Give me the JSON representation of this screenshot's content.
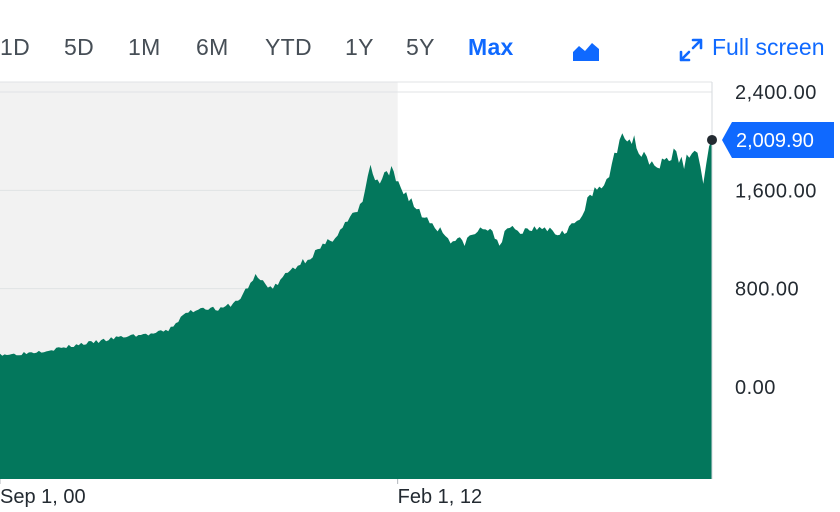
{
  "toolbar": {
    "ranges": [
      "1D",
      "5D",
      "1M",
      "6M",
      "YTD",
      "1Y",
      "5Y",
      "Max"
    ],
    "active_range": "Max",
    "chart_type_icon": "area-chart-icon",
    "fullscreen_label": "Full screen",
    "fullscreen_icon": "expand-arrows-icon"
  },
  "colors": {
    "area_fill": "#03775c",
    "accent": "#0f69ff",
    "volume_bar": "#b9dccf",
    "shaded_region": "#f2f2f2",
    "grid": "#e0e3e5"
  },
  "current_price_label": "2,009.90",
  "chart_data": {
    "type": "area",
    "y_ticks": [
      "2,400.00",
      "1,600.00",
      "800.00",
      "0.00"
    ],
    "y_tick_values": [
      2400,
      1600,
      800,
      0
    ],
    "ylim": [
      -150,
      2550
    ],
    "x_tick_labels": [
      "Sep 1, 00",
      "Feb 1, 12"
    ],
    "x_tick_values": [
      2000.67,
      2012.08
    ],
    "xlim": [
      2000.67,
      2021.1
    ],
    "shaded_period": [
      2000.67,
      2012.08
    ],
    "grid": true,
    "series": [
      {
        "x": [
          2000.67,
          2001.0,
          2001.5,
          2002.0,
          2002.5,
          2003.0,
          2003.5,
          2004.0,
          2004.5,
          2005.0,
          2005.5,
          2006.0,
          2006.5,
          2007.0,
          2007.5,
          2008.0,
          2008.5,
          2009.0,
          2009.5,
          2010.0,
          2010.5,
          2011.0,
          2011.3,
          2011.5,
          2011.7,
          2011.9,
          2012.1,
          2012.4,
          2012.7,
          2013.0,
          2013.3,
          2013.6,
          2014.0,
          2014.3,
          2014.6,
          2015.0,
          2015.3,
          2015.6,
          2016.0,
          2016.3,
          2016.6,
          2017.0,
          2017.3,
          2017.6,
          2018.0,
          2018.3,
          2018.6,
          2019.0,
          2019.3,
          2019.6,
          2020.0,
          2020.3,
          2020.6,
          2020.85,
          2021.1
        ],
        "values": [
          270,
          265,
          280,
          300,
          320,
          350,
          370,
          400,
          420,
          430,
          460,
          600,
          650,
          630,
          700,
          900,
          800,
          950,
          1050,
          1150,
          1300,
          1450,
          1780,
          1650,
          1700,
          1750,
          1650,
          1550,
          1420,
          1350,
          1280,
          1200,
          1180,
          1250,
          1300,
          1180,
          1290,
          1260,
          1300,
          1320,
          1250,
          1300,
          1350,
          1550,
          1650,
          1850,
          2080,
          1950,
          1850,
          1800,
          1900,
          1820,
          1950,
          1700,
          2009.9
        ]
      }
    ]
  }
}
